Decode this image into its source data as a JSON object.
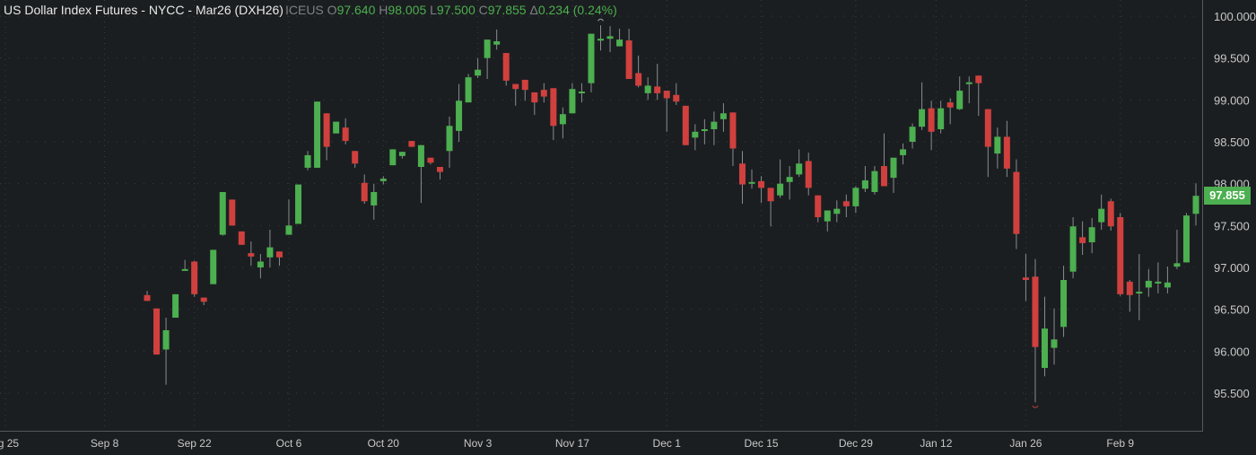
{
  "header": {
    "title": "US Dollar Index Futures - NYCC - Mar26 (DXH26)",
    "exchange": "ICEUS",
    "open_label": "O",
    "open": "97.640",
    "high_label": "H",
    "high": "98.005",
    "low_label": "L",
    "low": "97.500",
    "close_label": "C",
    "close": "97.855",
    "change_label": "Δ",
    "change": "0.234 (0.24%)"
  },
  "last_price_tag": "97.855",
  "colors": {
    "up": "#4caf50",
    "down": "#d0403e",
    "background": "#1b1e20",
    "grid": "#3a3e41",
    "axis_text": "#c8c8c8"
  },
  "chart_data": {
    "type": "candlestick",
    "title": "US Dollar Index Futures - NYCC - Mar26 (DXH26)",
    "y_ticks": [
      "100.000",
      "99.500",
      "99.000",
      "98.500",
      "98.000",
      "97.500",
      "97.000",
      "96.500",
      "96.000",
      "95.500"
    ],
    "ylim": [
      95.2,
      100.0
    ],
    "x_ticks": [
      "ug 25",
      "Sep 8",
      "Sep 22",
      "Oct 6",
      "Oct 20",
      "Nov 3",
      "Nov 17",
      "Dec 1",
      "Dec 15",
      "Dec 29",
      "Jan 12",
      "Jan 26",
      "Feb 9"
    ],
    "x_tick_index": [
      -15,
      -4.5,
      5,
      15,
      25,
      35,
      45,
      55,
      65,
      75,
      83.5,
      93,
      103
    ],
    "candles": [
      [
        96.67,
        96.72,
        96.6,
        96.6
      ],
      [
        96.51,
        96.51,
        95.96,
        95.96
      ],
      [
        96.02,
        96.4,
        95.6,
        96.25
      ],
      [
        96.4,
        96.68,
        96.4,
        96.68
      ],
      [
        96.97,
        97.09,
        96.96,
        96.98
      ],
      [
        97.07,
        97.08,
        96.65,
        96.68
      ],
      [
        96.64,
        96.64,
        96.55,
        96.59
      ],
      [
        96.8,
        97.21,
        96.8,
        97.21
      ],
      [
        97.39,
        97.9,
        97.38,
        97.9
      ],
      [
        97.81,
        97.81,
        97.5,
        97.5
      ],
      [
        97.43,
        97.43,
        97.27,
        97.27
      ],
      [
        97.17,
        97.31,
        97.02,
        97.13
      ],
      [
        97.0,
        97.16,
        96.87,
        97.07
      ],
      [
        97.12,
        97.45,
        97.0,
        97.24
      ],
      [
        97.19,
        97.19,
        97.02,
        97.12
      ],
      [
        97.39,
        97.81,
        97.39,
        97.5
      ],
      [
        97.52,
        97.99,
        97.52,
        97.99
      ],
      [
        98.19,
        98.39,
        98.16,
        98.34
      ],
      [
        98.19,
        98.98,
        98.19,
        98.98
      ],
      [
        98.84,
        98.84,
        98.28,
        98.44
      ],
      [
        98.6,
        98.74,
        98.6,
        98.74
      ],
      [
        98.67,
        98.78,
        98.47,
        98.51
      ],
      [
        98.39,
        98.39,
        98.19,
        98.24
      ],
      [
        98.01,
        98.11,
        97.76,
        97.79
      ],
      [
        97.74,
        98.0,
        97.57,
        97.9
      ],
      [
        98.03,
        98.09,
        97.99,
        98.06
      ],
      [
        98.22,
        98.41,
        98.22,
        98.41
      ],
      [
        98.33,
        98.38,
        98.3,
        98.38
      ],
      [
        98.51,
        98.51,
        98.44,
        98.44
      ],
      [
        98.2,
        98.46,
        97.77,
        98.46
      ],
      [
        98.31,
        98.31,
        98.23,
        98.25
      ],
      [
        98.2,
        98.2,
        98.05,
        98.14
      ],
      [
        98.39,
        98.8,
        98.19,
        98.69
      ],
      [
        98.63,
        99.19,
        98.5,
        98.99
      ],
      [
        98.97,
        99.31,
        98.97,
        99.27
      ],
      [
        99.29,
        99.5,
        99.26,
        99.36
      ],
      [
        99.5,
        99.72,
        99.25,
        99.72
      ],
      [
        99.66,
        99.84,
        99.6,
        99.7
      ],
      [
        99.56,
        99.56,
        99.17,
        99.23
      ],
      [
        99.19,
        99.19,
        98.93,
        99.13
      ],
      [
        99.24,
        99.24,
        98.99,
        99.12
      ],
      [
        99.09,
        99.09,
        98.82,
        98.97
      ],
      [
        99.12,
        99.2,
        98.97,
        99.04
      ],
      [
        99.14,
        99.14,
        98.52,
        98.69
      ],
      [
        98.71,
        98.91,
        98.54,
        98.83
      ],
      [
        98.84,
        99.2,
        98.84,
        99.13
      ],
      [
        99.09,
        99.2,
        98.97,
        99.1
      ],
      [
        99.2,
        99.79,
        99.09,
        99.79
      ],
      [
        99.73,
        99.89,
        99.59,
        99.73
      ],
      [
        99.73,
        99.88,
        99.57,
        99.76
      ],
      [
        99.64,
        99.85,
        99.64,
        99.72
      ],
      [
        99.71,
        99.85,
        99.25,
        99.25
      ],
      [
        99.32,
        99.53,
        99.15,
        99.17
      ],
      [
        99.08,
        99.27,
        99.0,
        99.17
      ],
      [
        99.16,
        99.43,
        99.0,
        99.08
      ],
      [
        99.11,
        99.11,
        98.62,
        99.02
      ],
      [
        99.06,
        99.2,
        98.94,
        98.98
      ],
      [
        98.93,
        98.93,
        98.46,
        98.46
      ],
      [
        98.55,
        98.71,
        98.4,
        98.62
      ],
      [
        98.65,
        98.77,
        98.47,
        98.65
      ],
      [
        98.65,
        98.86,
        98.46,
        98.74
      ],
      [
        98.77,
        98.96,
        98.62,
        98.84
      ],
      [
        98.85,
        98.85,
        98.21,
        98.42
      ],
      [
        98.24,
        98.39,
        97.76,
        97.99
      ],
      [
        98.01,
        98.17,
        97.94,
        98.02
      ],
      [
        98.03,
        98.09,
        97.77,
        97.95
      ],
      [
        97.95,
        97.95,
        97.49,
        97.79
      ],
      [
        97.86,
        98.29,
        97.83,
        98.0
      ],
      [
        98.02,
        98.21,
        97.81,
        98.08
      ],
      [
        98.11,
        98.41,
        98.08,
        98.24
      ],
      [
        98.27,
        98.37,
        97.86,
        97.95
      ],
      [
        97.86,
        97.86,
        97.54,
        97.6
      ],
      [
        97.55,
        97.68,
        97.43,
        97.68
      ],
      [
        97.64,
        97.8,
        97.54,
        97.7
      ],
      [
        97.79,
        97.87,
        97.6,
        97.73
      ],
      [
        97.73,
        97.97,
        97.65,
        97.95
      ],
      [
        97.94,
        98.21,
        97.9,
        98.04
      ],
      [
        97.9,
        98.21,
        97.87,
        98.15
      ],
      [
        98.21,
        98.6,
        97.97,
        97.97
      ],
      [
        98.07,
        98.31,
        97.89,
        98.31
      ],
      [
        98.34,
        98.48,
        98.23,
        98.41
      ],
      [
        98.5,
        98.72,
        98.42,
        98.68
      ],
      [
        98.68,
        99.21,
        98.64,
        98.89
      ],
      [
        98.9,
        98.99,
        98.4,
        98.62
      ],
      [
        98.65,
        98.99,
        98.6,
        98.9
      ],
      [
        98.97,
        99.02,
        98.71,
        98.91
      ],
      [
        98.89,
        99.28,
        98.88,
        99.11
      ],
      [
        99.2,
        99.28,
        98.96,
        99.21
      ],
      [
        99.29,
        99.29,
        98.81,
        99.2
      ],
      [
        98.89,
        98.89,
        98.08,
        98.44
      ],
      [
        98.36,
        98.67,
        98.18,
        98.56
      ],
      [
        98.56,
        98.75,
        98.08,
        98.18
      ],
      [
        98.14,
        98.29,
        97.22,
        97.4
      ],
      [
        96.88,
        97.16,
        96.6,
        96.85
      ],
      [
        96.89,
        97.1,
        95.39,
        96.05
      ],
      [
        95.8,
        96.65,
        95.7,
        96.27
      ],
      [
        96.04,
        96.51,
        95.84,
        96.14
      ],
      [
        96.29,
        97.02,
        96.17,
        96.85
      ],
      [
        96.95,
        97.6,
        96.87,
        97.49
      ],
      [
        97.36,
        97.55,
        97.15,
        97.29
      ],
      [
        97.3,
        97.59,
        97.17,
        97.48
      ],
      [
        97.54,
        97.87,
        97.45,
        97.7
      ],
      [
        97.79,
        97.82,
        97.44,
        97.49
      ],
      [
        97.6,
        97.65,
        96.66,
        96.68
      ],
      [
        96.83,
        96.85,
        96.47,
        96.67
      ],
      [
        96.69,
        97.16,
        96.37,
        96.71
      ],
      [
        96.76,
        96.98,
        96.65,
        96.84
      ],
      [
        96.82,
        97.06,
        96.69,
        96.83
      ],
      [
        96.76,
        97.01,
        96.69,
        96.82
      ],
      [
        97.01,
        97.45,
        96.98,
        97.05
      ],
      [
        97.06,
        97.65,
        97.06,
        97.62
      ],
      [
        97.64,
        98.005,
        97.5,
        97.855
      ]
    ]
  }
}
